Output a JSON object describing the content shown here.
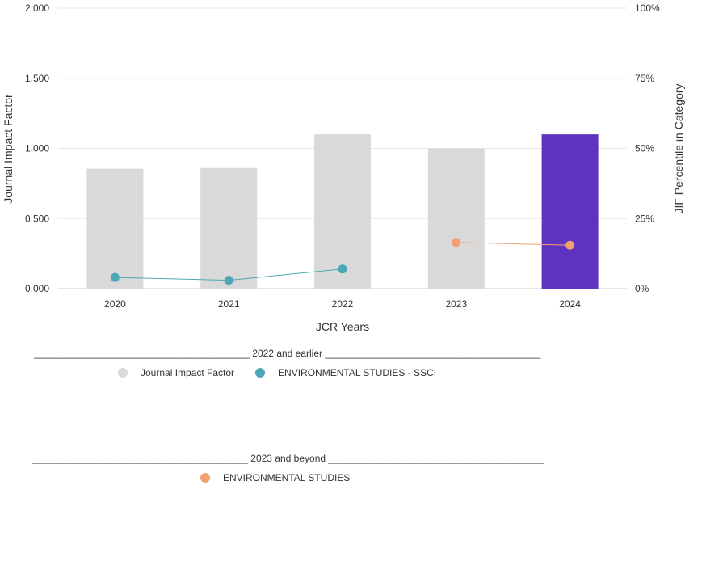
{
  "chart_data": {
    "type": "bar",
    "categories": [
      "2020",
      "2021",
      "2022",
      "2023",
      "2024"
    ],
    "values": [
      0.855,
      0.86,
      1.1,
      1.0,
      1.1
    ],
    "ylabel": "Journal Impact Factor",
    "y2label": "JIF Percentile in Category",
    "xlabel": "JCR Years",
    "ylim": [
      0,
      2
    ],
    "y2lim": [
      0,
      100
    ],
    "yticks": [
      "0.000",
      "0.500",
      "1.000",
      "1.500",
      "2.000"
    ],
    "y2ticks": [
      "0%",
      "25%",
      "50%",
      "75%",
      "100%"
    ],
    "grid": true,
    "bar_color": "#d9d9d9",
    "highlight_color": "#5e33bf",
    "highlight_category": "2024",
    "series": [
      {
        "name": "ENVIRONMENTAL STUDIES - SSCI",
        "axis": "right",
        "type": "line",
        "color": "#4da6b7",
        "x": [
          "2020",
          "2021",
          "2022"
        ],
        "values": [
          4.0,
          3.0,
          7.0
        ]
      },
      {
        "name": "ENVIRONMENTAL STUDIES",
        "axis": "right",
        "type": "line",
        "color": "#f4a070",
        "x": [
          "2023",
          "2024"
        ],
        "values": [
          16.5,
          15.5
        ]
      }
    ]
  },
  "legend": {
    "group1": {
      "header": "________________________________________ 2022 and earlier ________________________________________",
      "items": [
        {
          "label": "Journal Impact Factor",
          "color": "#d9d9d9"
        },
        {
          "label": "ENVIRONMENTAL STUDIES - SSCI",
          "color": "#4da6b7"
        }
      ]
    },
    "group2": {
      "header": "________________________________________ 2023 and beyond ________________________________________",
      "items": [
        {
          "label": "ENVIRONMENTAL STUDIES",
          "color": "#f4a070"
        }
      ]
    }
  }
}
